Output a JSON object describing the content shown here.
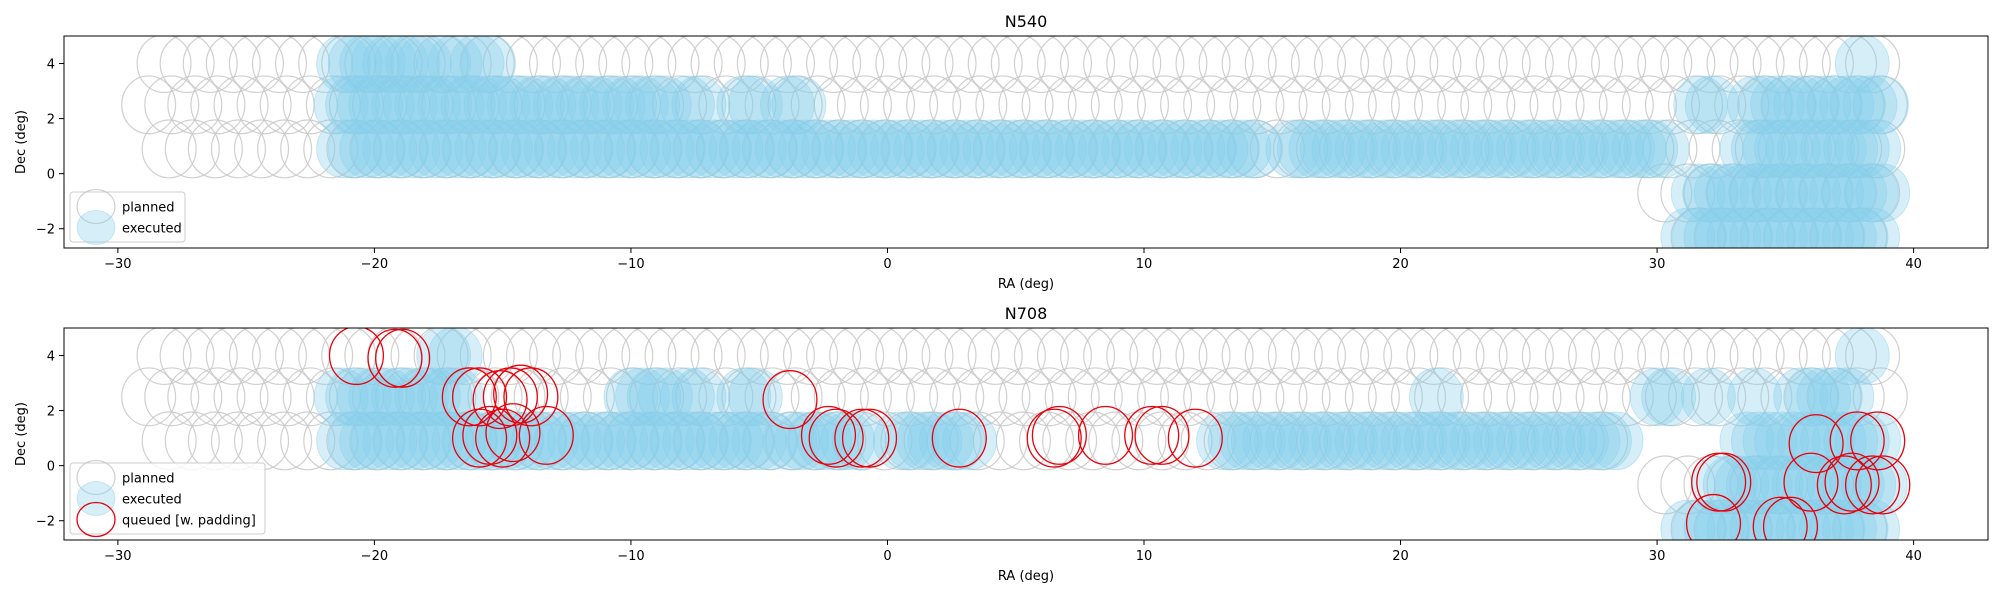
{
  "colors": {
    "planned_edge": "#c8c8c8",
    "executed_fill": "#87ceeb",
    "queued_edge": "#e8000b",
    "axes": "#000000",
    "legend_edge": "#cccccc"
  },
  "chart_data": [
    {
      "type": "scatter",
      "title": "N540",
      "xlabel": "RA (deg)",
      "ylabel": "Dec (deg)",
      "xlim": [
        -32.1,
        42.9
      ],
      "ylim": [
        -2.7,
        5.0
      ],
      "xticks": [
        -30,
        -20,
        -10,
        0,
        10,
        20,
        30,
        40
      ],
      "yticks": [
        -2,
        0,
        2,
        4
      ],
      "grid": false,
      "legend_position": "lower-left",
      "marker_radius_deg": 1.05,
      "legend": [
        "planned",
        "executed"
      ],
      "series": [
        {
          "name": "planned",
          "style": "ring-gray",
          "rows": [
            {
              "dec": 4.0,
              "x_start": -28.2,
              "x_end": 38.4,
              "step": 0.9
            },
            {
              "dec": 2.5,
              "x_start": -28.8,
              "x_end": 39.4,
              "step": 0.9
            },
            {
              "dec": 0.9,
              "x_start": -28.0,
              "x_end": 38.6,
              "step": 0.9
            },
            {
              "dec": -0.7,
              "x_start": 30.3,
              "x_end": 39.0,
              "step": 0.9
            },
            {
              "dec": -2.3,
              "x_start": 31.6,
              "x_end": 38.6,
              "step": 0.9
            }
          ]
        },
        {
          "name": "executed",
          "style": "fill-blue",
          "rows": [
            {
              "dec": 4.0,
              "ranges": [
                [
                  -21.2,
                  -17.9
                ],
                [
                  -17.3,
                  -16.6
                ],
                [
                  -16.0,
                  -15.3
                ],
                [
                  38.0,
                  38.4
                ]
              ],
              "step": 0.45
            },
            {
              "dec": 2.5,
              "ranges": [
                [
                  -21.3,
                  -8.7
                ],
                [
                  -7.8,
                  -7.3
                ],
                [
                  -5.6,
                  -5.0
                ],
                [
                  -3.9,
                  -3.4
                ],
                [
                  31.7,
                  32.3
                ],
                [
                  33.8,
                  38.9
                ]
              ],
              "step": 0.45
            },
            {
              "dec": 0.9,
              "ranges": [
                [
                  -21.2,
                  14.6
                ],
                [
                  15.8,
                  30.6
                ],
                [
                  33.5,
                  38.5
                ]
              ],
              "step": 0.45
            },
            {
              "dec": -0.7,
              "ranges": [
                [
                  31.6,
                  38.8
                ]
              ],
              "step": 0.45
            },
            {
              "dec": -2.3,
              "ranges": [
                [
                  31.2,
                  38.4
                ]
              ],
              "step": 0.45
            }
          ]
        }
      ]
    },
    {
      "type": "scatter",
      "title": "N708",
      "xlabel": "RA (deg)",
      "ylabel": "Dec (deg)",
      "xlim": [
        -32.1,
        42.9
      ],
      "ylim": [
        -2.7,
        5.0
      ],
      "xticks": [
        -30,
        -20,
        -10,
        0,
        10,
        20,
        30,
        40
      ],
      "yticks": [
        -2,
        0,
        2,
        4
      ],
      "grid": false,
      "legend_position": "lower-left",
      "marker_radius_deg": 1.05,
      "legend": [
        "planned",
        "executed",
        "queued [w. padding]"
      ],
      "series": [
        {
          "name": "planned",
          "style": "ring-gray",
          "rows": [
            {
              "dec": 4.0,
              "x_start": -28.2,
              "x_end": 38.4,
              "step": 0.9
            },
            {
              "dec": 2.5,
              "x_start": -28.8,
              "x_end": 39.4,
              "step": 0.9
            },
            {
              "dec": 0.9,
              "x_start": -28.0,
              "x_end": 28.6,
              "step": 0.9
            },
            {
              "dec": -0.7,
              "x_start": 30.3,
              "x_end": 39.0,
              "step": 0.9
            },
            {
              "dec": -2.3,
              "x_start": 31.6,
              "x_end": 38.6,
              "step": 0.9
            }
          ]
        },
        {
          "name": "executed",
          "style": "fill-blue",
          "rows": [
            {
              "dec": 4.0,
              "ranges": [
                [
                  -17.3,
                  -16.6
                ],
                [
                  38.0,
                  38.4
                ]
              ],
              "step": 0.45
            },
            {
              "dec": 2.5,
              "ranges": [
                [
                  -21.3,
                  -16.6
                ],
                [
                  -10.0,
                  -8.4
                ],
                [
                  -7.8,
                  -7.3
                ],
                [
                  -5.6,
                  -5.0
                ],
                [
                  21.4,
                  21.8
                ],
                [
                  30.0,
                  30.6
                ],
                [
                  32.0,
                  32.4
                ],
                [
                  33.8,
                  34.2
                ],
                [
                  35.6,
                  37.6
                ]
              ],
              "step": 0.45
            },
            {
              "dec": 0.9,
              "ranges": [
                [
                  -21.2,
                  -4.5
                ],
                [
                  -3.8,
                  -0.9
                ],
                [
                  0.5,
                  3.5
                ],
                [
                  13.1,
                  28.4
                ],
                [
                  33.5,
                  38.5
                ]
              ],
              "step": 0.45
            },
            {
              "dec": -0.7,
              "ranges": [
                [
                  32.4,
                  38.8
                ]
              ],
              "step": 0.45
            },
            {
              "dec": -2.3,
              "ranges": [
                [
                  31.2,
                  38.4
                ]
              ],
              "step": 0.45
            }
          ]
        },
        {
          "name": "queued [w. padding]",
          "style": "ring-red",
          "points": [
            [
              -20.7,
              4.0
            ],
            [
              -19.2,
              3.9
            ],
            [
              -18.9,
              3.9
            ],
            [
              -16.3,
              2.5
            ],
            [
              -15.9,
              2.5
            ],
            [
              -15.1,
              2.4
            ],
            [
              -14.7,
              2.5
            ],
            [
              -14.3,
              2.6
            ],
            [
              -13.9,
              2.5
            ],
            [
              -3.8,
              2.4
            ],
            [
              -15.9,
              1.0
            ],
            [
              -15.5,
              1.1
            ],
            [
              -15.0,
              1.0
            ],
            [
              -14.6,
              1.2
            ],
            [
              -13.3,
              1.1
            ],
            [
              -2.3,
              1.1
            ],
            [
              -2.0,
              1.0
            ],
            [
              -1.0,
              1.0
            ],
            [
              -0.7,
              1.0
            ],
            [
              2.8,
              1.0
            ],
            [
              6.5,
              1.0
            ],
            [
              6.7,
              1.1
            ],
            [
              8.5,
              1.1
            ],
            [
              10.3,
              1.1
            ],
            [
              10.7,
              1.1
            ],
            [
              12.0,
              1.0
            ],
            [
              36.2,
              0.8
            ],
            [
              37.8,
              0.9
            ],
            [
              38.6,
              0.9
            ],
            [
              32.4,
              -0.6
            ],
            [
              32.6,
              -0.6
            ],
            [
              36.0,
              -0.6
            ],
            [
              37.3,
              -0.7
            ],
            [
              37.6,
              -0.6
            ],
            [
              38.4,
              -0.7
            ],
            [
              38.8,
              -0.7
            ],
            [
              32.2,
              -2.1
            ],
            [
              34.8,
              -2.2
            ],
            [
              35.2,
              -2.2
            ]
          ]
        }
      ]
    }
  ]
}
